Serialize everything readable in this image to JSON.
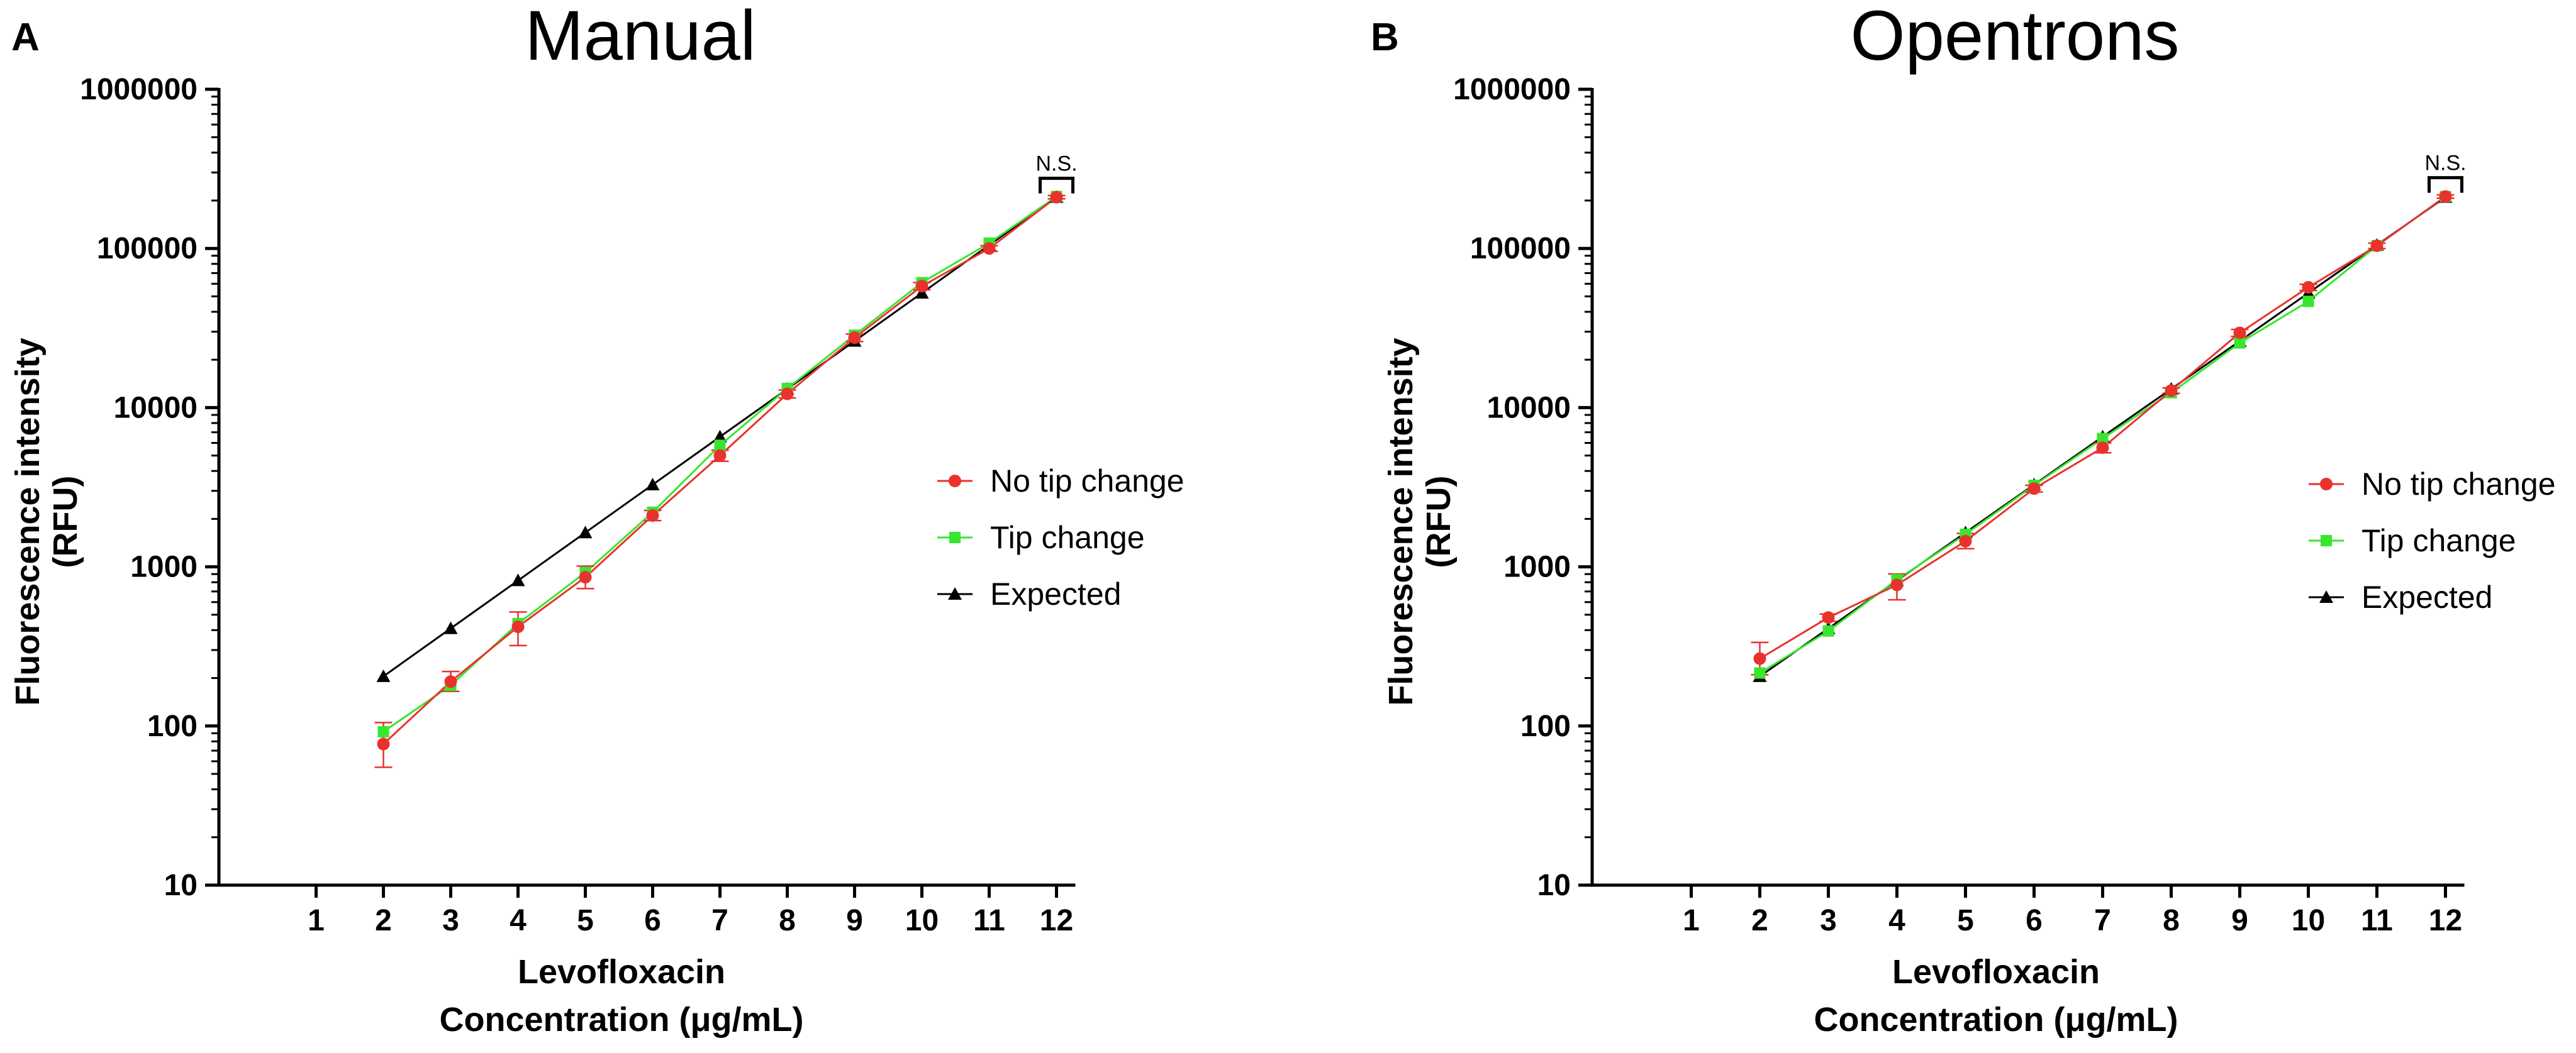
{
  "chart_data": [
    {
      "type": "line",
      "panel_label": "A",
      "title": "Manual",
      "xlabel_line1": "Levofloxacin",
      "xlabel_line2": "Concentration (μg/mL)",
      "ylabel_line1": "Fluorescence intensity",
      "ylabel_line2": "(RFU)",
      "yscale": "log",
      "ylim": [
        10,
        1000000
      ],
      "xlim": [
        0,
        12
      ],
      "yticks": [
        10,
        100,
        1000,
        10000,
        100000,
        1000000
      ],
      "ytick_labels": [
        "10",
        "100",
        "1000",
        "10000",
        "100000",
        "1000000"
      ],
      "xticks": [
        1,
        2,
        3,
        4,
        5,
        6,
        7,
        8,
        9,
        10,
        11,
        12
      ],
      "xtick_labels": [
        "1",
        "2",
        "3",
        "4",
        "5",
        "6",
        "7",
        "8",
        "9",
        "10",
        "11",
        "12"
      ],
      "legend_position": "right",
      "annotation": {
        "text": "N.S.",
        "x": 12
      },
      "series": [
        {
          "name": "No tip change",
          "color": "#e8322e",
          "marker": "circle",
          "x": [
            2,
            3,
            4,
            5,
            6,
            7,
            8,
            9,
            10,
            11,
            12
          ],
          "values": [
            77,
            190,
            420,
            860,
            2100,
            5000,
            12200,
            27500,
            58000,
            100000,
            210000
          ],
          "error": [
            [
              55,
              105
            ],
            [
              165,
              220
            ],
            [
              320,
              520
            ],
            [
              730,
              1010
            ],
            [
              1950,
              2260
            ],
            [
              4600,
              5400
            ],
            [
              11500,
              12900
            ],
            [
              26000,
              29000
            ],
            [
              55000,
              61000
            ],
            [
              96000,
              104000
            ],
            [
              205000,
              215000
            ]
          ]
        },
        {
          "name": "Tip change",
          "color": "#38e62e",
          "marker": "square",
          "x": [
            2,
            3,
            4,
            5,
            6,
            7,
            8,
            9,
            10,
            11,
            12
          ],
          "values": [
            92,
            180,
            440,
            920,
            2200,
            5800,
            13200,
            28500,
            61000,
            108000,
            212000
          ]
        },
        {
          "name": "Expected",
          "color": "#000000",
          "marker": "triangle",
          "x": [
            2,
            3,
            4,
            5,
            6,
            7,
            8,
            9,
            10,
            11,
            12
          ],
          "values": [
            205,
            410,
            820,
            1640,
            3280,
            6560,
            13100,
            26200,
            52500,
            105000,
            210000
          ]
        }
      ]
    },
    {
      "type": "line",
      "panel_label": "B",
      "title": "Opentrons",
      "xlabel_line1": "Levofloxacin",
      "xlabel_line2": "Concentration (μg/mL)",
      "ylabel_line1": "Fluorescence intensity",
      "ylabel_line2": "(RFU)",
      "yscale": "log",
      "ylim": [
        10,
        1000000
      ],
      "xlim": [
        0,
        12
      ],
      "yticks": [
        10,
        100,
        1000,
        10000,
        100000,
        1000000
      ],
      "ytick_labels": [
        "10",
        "100",
        "1000",
        "10000",
        "100000",
        "1000000"
      ],
      "xticks": [
        1,
        2,
        3,
        4,
        5,
        6,
        7,
        8,
        9,
        10,
        11,
        12
      ],
      "xtick_labels": [
        "1",
        "2",
        "3",
        "4",
        "5",
        "6",
        "7",
        "8",
        "9",
        "10",
        "11",
        "12"
      ],
      "legend_position": "right",
      "annotation": {
        "text": "N.S.",
        "x": 12
      },
      "series": [
        {
          "name": "No tip change",
          "color": "#e8322e",
          "marker": "circle",
          "x": [
            2,
            3,
            4,
            5,
            6,
            7,
            8,
            9,
            10,
            11,
            12
          ],
          "values": [
            265,
            480,
            770,
            1450,
            3100,
            5600,
            12800,
            29500,
            57000,
            104000,
            212000
          ],
          "error": [
            [
              210,
              335
            ],
            [
              455,
              505
            ],
            [
              620,
              900
            ],
            [
              1300,
              1620
            ],
            [
              2950,
              3250
            ],
            [
              5200,
              6000
            ],
            [
              12300,
              13300
            ],
            [
              28000,
              31000
            ],
            [
              54500,
              59500
            ],
            [
              100000,
              108000
            ],
            [
              207000,
              217000
            ]
          ]
        },
        {
          "name": "Tip change",
          "color": "#38e62e",
          "marker": "square",
          "x": [
            2,
            3,
            4,
            5,
            6,
            7,
            8,
            9,
            10,
            11,
            12
          ],
          "values": [
            215,
            395,
            830,
            1600,
            3250,
            6400,
            12400,
            25500,
            46500,
            104000,
            212000
          ]
        },
        {
          "name": "Expected",
          "color": "#000000",
          "marker": "triangle",
          "x": [
            2,
            3,
            4,
            5,
            6,
            7,
            8,
            9,
            10,
            11,
            12
          ],
          "values": [
            205,
            410,
            820,
            1640,
            3280,
            6560,
            13100,
            26200,
            52500,
            105000,
            210000
          ]
        }
      ]
    }
  ]
}
